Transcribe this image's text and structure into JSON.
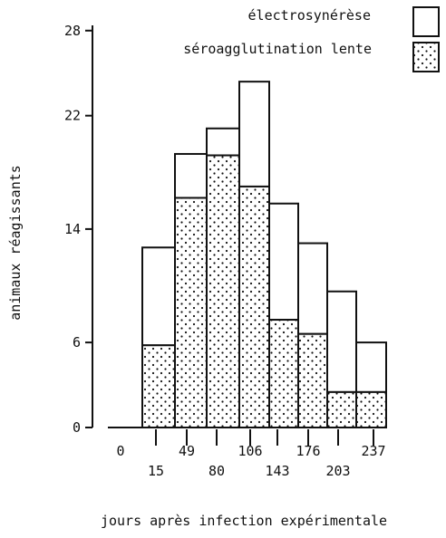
{
  "chart_data": {
    "type": "bar",
    "stacked": true,
    "ylabel": "animaux réagissants",
    "xlabel": "jours après infection expérimentale",
    "yticks": [
      0,
      6,
      14,
      22,
      28
    ],
    "ylim": [
      0,
      28
    ],
    "xticks": [
      "0",
      "15",
      "49",
      "80",
      "106",
      "143",
      "176",
      "203",
      "237"
    ],
    "series": [
      {
        "name": "séroagglutination lente",
        "pattern": "dotted",
        "values": [
          5.8,
          16.2,
          19.2,
          17,
          7.6,
          6.6,
          2.5,
          2.5
        ]
      },
      {
        "name": "électrosynérèse",
        "pattern": "empty",
        "values": [
          6.9,
          3.1,
          1.9,
          7.4,
          8.2,
          6.4,
          7.1,
          3.5
        ]
      }
    ],
    "legend_position": "top-right"
  }
}
